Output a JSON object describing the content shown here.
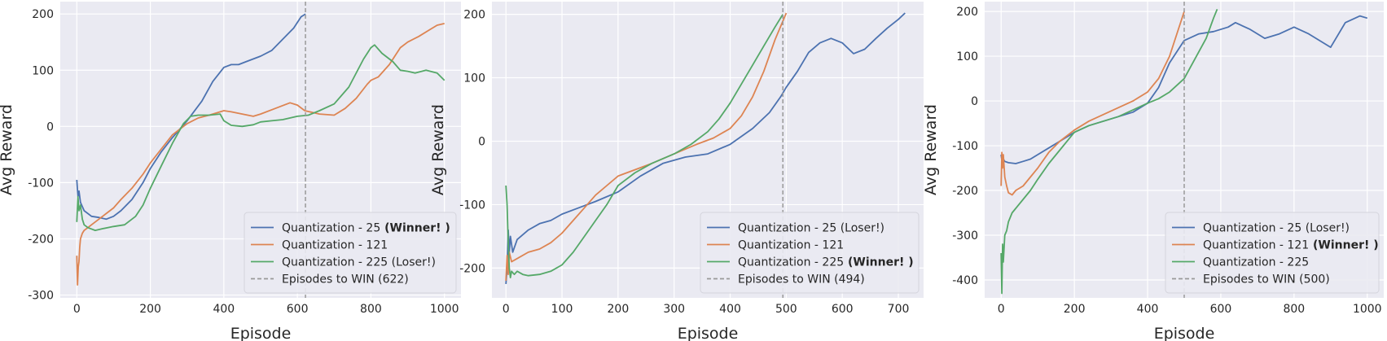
{
  "chart_data": [
    {
      "type": "line",
      "xlabel": "Episode",
      "ylabel": "Avg Reward",
      "xlim": [
        -45,
        1045
      ],
      "ylim": [
        -305,
        222
      ],
      "xticks": [
        0,
        200,
        400,
        600,
        800,
        1000
      ],
      "yticks": [
        -300,
        -200,
        -100,
        0,
        100,
        200
      ],
      "grid": true,
      "legend_position": "lower-right",
      "series": [
        {
          "name": "Quantization - 25",
          "tag": "(Winner! )",
          "color": "#4c72b0",
          "x": [
            0,
            3,
            6,
            10,
            20,
            40,
            60,
            80,
            100,
            120,
            150,
            180,
            200,
            230,
            260,
            300,
            340,
            370,
            400,
            420,
            440,
            460,
            500,
            530,
            560,
            590,
            610,
            622
          ],
          "y": [
            -95,
            -125,
            -115,
            -135,
            -150,
            -160,
            -162,
            -165,
            -160,
            -150,
            -130,
            -100,
            -75,
            -45,
            -20,
            10,
            45,
            80,
            105,
            110,
            110,
            115,
            125,
            135,
            155,
            175,
            195,
            200
          ]
        },
        {
          "name": "Quantization - 121",
          "tag": "",
          "color": "#dd8452",
          "x": [
            0,
            2,
            4,
            6,
            8,
            10,
            15,
            20,
            30,
            40,
            60,
            80,
            100,
            120,
            150,
            180,
            200,
            230,
            260,
            300,
            330,
            360,
            400,
            420,
            450,
            480,
            500,
            540,
            580,
            600,
            620,
            660,
            700,
            730,
            760,
            790,
            800,
            820,
            850,
            880,
            900,
            930,
            960,
            980,
            1000
          ],
          "y": [
            -230,
            -282,
            -250,
            -240,
            -215,
            -200,
            -190,
            -185,
            -180,
            -175,
            -165,
            -155,
            -145,
            -130,
            -110,
            -85,
            -65,
            -40,
            -15,
            5,
            15,
            20,
            28,
            26,
            22,
            18,
            22,
            32,
            42,
            38,
            28,
            22,
            20,
            32,
            50,
            75,
            82,
            88,
            110,
            140,
            150,
            160,
            172,
            180,
            183
          ]
        },
        {
          "name": "Quantization - 225",
          "tag": "(Loser!)",
          "color": "#55a868",
          "x": [
            0,
            3,
            6,
            10,
            15,
            20,
            30,
            50,
            70,
            100,
            130,
            160,
            180,
            200,
            230,
            260,
            290,
            310,
            330,
            360,
            390,
            400,
            420,
            450,
            480,
            500,
            530,
            560,
            600,
            630,
            660,
            700,
            740,
            780,
            800,
            810,
            830,
            860,
            880,
            900,
            920,
            950,
            980,
            1000
          ],
          "y": [
            -170,
            -125,
            -150,
            -140,
            -165,
            -175,
            -180,
            -185,
            -182,
            -178,
            -175,
            -160,
            -140,
            -110,
            -70,
            -30,
            5,
            18,
            20,
            20,
            22,
            10,
            2,
            0,
            3,
            8,
            10,
            12,
            18,
            20,
            28,
            40,
            70,
            120,
            140,
            145,
            130,
            115,
            100,
            98,
            95,
            100,
            95,
            82
          ]
        },
        {
          "name": "Episodes to WIN (622)",
          "tag": "",
          "color": "#999999",
          "style": "dashed",
          "vline": 622
        }
      ]
    },
    {
      "type": "line",
      "xlabel": "Episode",
      "ylabel": "Avg Reward",
      "xlim": [
        -25,
        745
      ],
      "ylim": [
        -247,
        220
      ],
      "xticks": [
        0,
        100,
        200,
        300,
        400,
        500,
        600,
        700
      ],
      "yticks": [
        -200,
        -100,
        0,
        100,
        200
      ],
      "grid": true,
      "legend_position": "lower-right",
      "series": [
        {
          "name": "Quantization - 25",
          "tag": "(Loser!)",
          "color": "#4c72b0",
          "x": [
            0,
            2,
            4,
            6,
            8,
            12,
            20,
            40,
            60,
            80,
            100,
            130,
            160,
            200,
            240,
            280,
            320,
            360,
            400,
            440,
            470,
            490,
            500,
            520,
            540,
            560,
            580,
            600,
            620,
            640,
            660,
            680,
            700,
            712
          ],
          "y": [
            -225,
            -200,
            -140,
            -175,
            -150,
            -175,
            -155,
            -140,
            -130,
            -125,
            -115,
            -105,
            -95,
            -80,
            -55,
            -35,
            -25,
            -20,
            -5,
            20,
            45,
            70,
            85,
            110,
            140,
            155,
            162,
            155,
            138,
            145,
            162,
            178,
            192,
            202
          ]
        },
        {
          "name": "Quantization - 121",
          "tag": "",
          "color": "#dd8452",
          "x": [
            0,
            2,
            4,
            6,
            10,
            20,
            40,
            60,
            80,
            100,
            120,
            140,
            160,
            180,
            200,
            230,
            260,
            300,
            340,
            370,
            400,
            420,
            440,
            460,
            480,
            500
          ],
          "y": [
            -220,
            -180,
            -210,
            -175,
            -190,
            -185,
            -175,
            -170,
            -160,
            -145,
            -125,
            -105,
            -85,
            -70,
            -55,
            -45,
            -35,
            -20,
            -5,
            5,
            20,
            40,
            70,
            110,
            160,
            202
          ]
        },
        {
          "name": "Quantization - 225",
          "tag": "(Winner! )",
          "color": "#55a868",
          "x": [
            0,
            2,
            4,
            6,
            8,
            10,
            15,
            20,
            30,
            40,
            60,
            80,
            100,
            120,
            140,
            160,
            180,
            200,
            230,
            260,
            300,
            330,
            360,
            380,
            400,
            420,
            440,
            460,
            480,
            494
          ],
          "y": [
            -70,
            -100,
            -160,
            -200,
            -215,
            -205,
            -210,
            -205,
            -210,
            -212,
            -210,
            -205,
            -195,
            -175,
            -150,
            -125,
            -100,
            -70,
            -50,
            -35,
            -20,
            -5,
            15,
            35,
            60,
            90,
            120,
            150,
            180,
            200
          ]
        },
        {
          "name": "Episodes to WIN (494)",
          "tag": "",
          "color": "#999999",
          "style": "dashed",
          "vline": 494
        }
      ]
    },
    {
      "type": "line",
      "xlabel": "Episode",
      "ylabel": "Avg Reward",
      "xlim": [
        -45,
        1045
      ],
      "ylim": [
        -440,
        222
      ],
      "xticks": [
        0,
        200,
        400,
        600,
        800,
        1000
      ],
      "yticks": [
        -400,
        -300,
        -200,
        -100,
        0,
        100,
        200
      ],
      "grid": true,
      "legend_position": "lower-right",
      "series": [
        {
          "name": "Quantization - 25",
          "tag": "(Loser!)",
          "color": "#4c72b0",
          "x": [
            0,
            3,
            6,
            10,
            20,
            40,
            60,
            80,
            100,
            130,
            160,
            200,
            240,
            280,
            320,
            360,
            400,
            430,
            460,
            500,
            540,
            580,
            620,
            640,
            680,
            720,
            760,
            800,
            840,
            880,
            900,
            940,
            980,
            1000
          ],
          "y": [
            -120,
            -140,
            -130,
            -135,
            -138,
            -140,
            -135,
            -130,
            -120,
            -105,
            -90,
            -70,
            -55,
            -45,
            -35,
            -25,
            -5,
            30,
            85,
            135,
            150,
            155,
            165,
            175,
            160,
            140,
            150,
            165,
            150,
            130,
            120,
            175,
            190,
            185
          ]
        },
        {
          "name": "Quantization - 121",
          "tag": "(Winner! )",
          "color": "#dd8452",
          "x": [
            0,
            2,
            4,
            6,
            10,
            15,
            20,
            30,
            40,
            60,
            80,
            100,
            130,
            160,
            200,
            240,
            280,
            320,
            360,
            400,
            430,
            460,
            480,
            500
          ],
          "y": [
            -190,
            -115,
            -150,
            -120,
            -170,
            -190,
            -205,
            -210,
            -200,
            -190,
            -170,
            -150,
            -115,
            -90,
            -65,
            -45,
            -30,
            -15,
            0,
            20,
            50,
            100,
            150,
            200
          ]
        },
        {
          "name": "Quantization - 225",
          "tag": "",
          "color": "#55a868",
          "x": [
            0,
            2,
            4,
            6,
            10,
            15,
            20,
            30,
            40,
            60,
            80,
            100,
            130,
            160,
            200,
            240,
            280,
            320,
            360,
            400,
            430,
            460,
            500,
            520,
            540,
            560,
            580,
            590
          ],
          "y": [
            -340,
            -430,
            -320,
            -360,
            -300,
            -290,
            -270,
            -250,
            -240,
            -220,
            -200,
            -175,
            -140,
            -110,
            -70,
            -55,
            -45,
            -35,
            -20,
            -5,
            5,
            20,
            50,
            80,
            110,
            140,
            185,
            205
          ]
        },
        {
          "name": "Episodes to WIN (500)",
          "tag": "",
          "color": "#999999",
          "style": "dashed",
          "vline": 500
        }
      ]
    }
  ]
}
